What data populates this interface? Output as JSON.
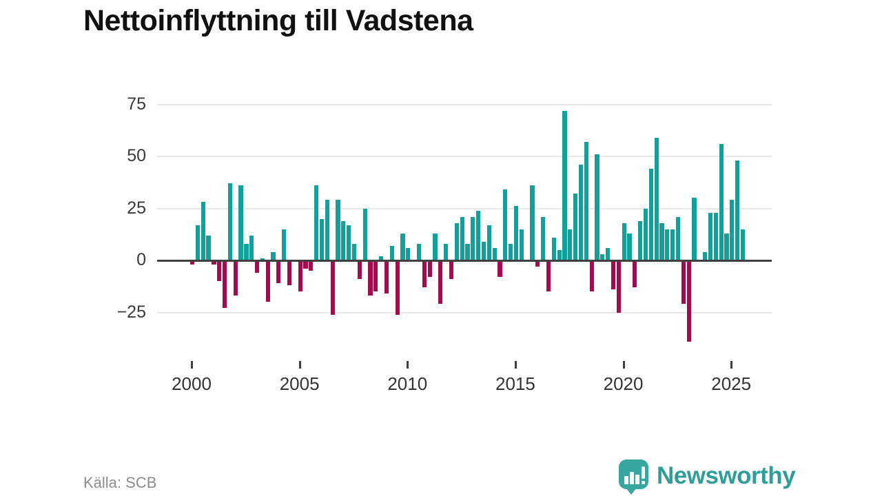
{
  "title": "Nettoinflyttning till Vadstena",
  "source": "Källa: SCB",
  "logo": {
    "text": "Newsworthy",
    "icon": "speech-bubble-barchart-icon"
  },
  "colors": {
    "positive_bar": "#12a09a",
    "negative_bar": "#a30b4e",
    "axis_line": "#3f3f3f",
    "gridline": "#e7e7e7",
    "tick_label": "#333333",
    "y_label": "#3a3a3a",
    "source_text": "#8c8c8c",
    "logo_teal": "#35a79e",
    "logo_text_teal": "#2f9e96",
    "title_text": "#111111"
  },
  "chart_data": {
    "type": "bar",
    "title": "Nettoinflyttning till Vadstena",
    "xlabel": "",
    "ylabel": "",
    "period": "quarterly",
    "start_year": 2000,
    "start_quarter": 1,
    "x_tick_years": [
      2000,
      2005,
      2010,
      2015,
      2020,
      2025
    ],
    "y_ticks": [
      75,
      50,
      25,
      0,
      -25
    ],
    "y_tick_labels": [
      "75",
      "50",
      "25",
      "0",
      "−25"
    ],
    "ylim": [
      -45,
      80
    ],
    "grid": "horizontal",
    "legend": "none",
    "values": [
      -2,
      17,
      28,
      12,
      -2,
      -10,
      -23,
      37,
      -17,
      36,
      8,
      12,
      -6,
      1,
      -20,
      4,
      -11,
      15,
      -12,
      0,
      -15,
      -4,
      -5,
      36,
      20,
      29,
      -26,
      29,
      19,
      17,
      8,
      -9,
      25,
      -17,
      -15,
      2,
      -16,
      7,
      -26,
      13,
      6,
      0,
      8,
      -13,
      -8,
      13,
      -21,
      8,
      -9,
      18,
      21,
      8,
      21,
      24,
      9,
      17,
      6,
      -8,
      34,
      8,
      26,
      15,
      0,
      36,
      -3,
      21,
      -15,
      11,
      5,
      72,
      15,
      32,
      46,
      57,
      -15,
      51,
      3,
      6,
      -14,
      -25,
      18,
      13,
      -13,
      19,
      25,
      44,
      59,
      18,
      15,
      15,
      21,
      -21,
      -39,
      30,
      0,
      4,
      23,
      23,
      56,
      13,
      29,
      48,
      15
    ]
  }
}
